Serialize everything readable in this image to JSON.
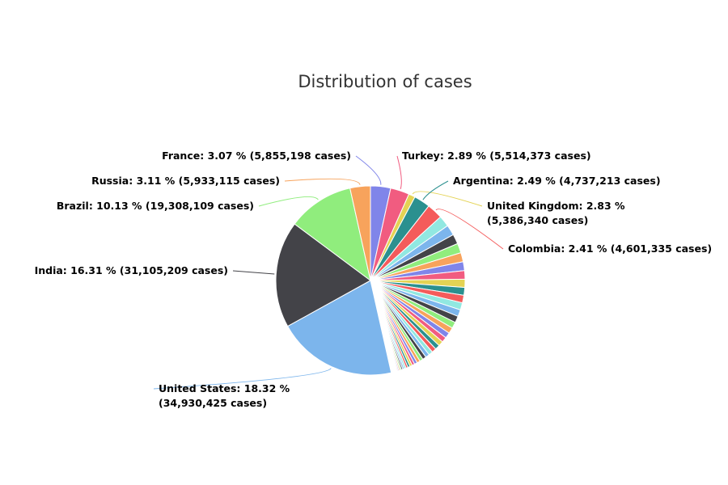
{
  "chart_data": {
    "type": "pie",
    "title": "Distribution of cases",
    "colors": [
      "#7cb5ec",
      "#434348",
      "#90ed7d",
      "#f7a35c",
      "#8085e9",
      "#f15c80",
      "#e4d354",
      "#2b908f",
      "#f45b5b",
      "#91e8e1"
    ],
    "labeled_slices": [
      {
        "name": "United States",
        "percent": 18.32,
        "cases": 34930425,
        "label_lines": [
          "United States: 18.32 %",
          "(34,930,425 cases)"
        ]
      },
      {
        "name": "India",
        "percent": 16.31,
        "cases": 31105209,
        "label_lines": [
          "India: 16.31 % (31,105,209 cases)"
        ]
      },
      {
        "name": "Brazil",
        "percent": 10.13,
        "cases": 19308109,
        "label_lines": [
          "Brazil: 10.13 % (19,308,109 cases)"
        ]
      },
      {
        "name": "Russia",
        "percent": 3.11,
        "cases": 5933115,
        "label_lines": [
          "Russia: 3.11 % (5,933,115 cases)"
        ]
      },
      {
        "name": "France",
        "percent": 3.07,
        "cases": 5855198,
        "label_lines": [
          "France: 3.07 % (5,855,198 cases)"
        ]
      },
      {
        "name": "Turkey",
        "percent": 2.89,
        "cases": 5514373,
        "label_lines": [
          "Turkey: 2.89 % (5,514,373 cases)"
        ]
      },
      {
        "name": "United Kingdom",
        "percent": 2.83,
        "cases": 5386340,
        "label_lines": [
          "United Kingdom: 2.83 %",
          "(5,386,340 cases)"
        ]
      },
      {
        "name": "Argentina",
        "percent": 2.49,
        "cases": 4737213,
        "label_lines": [
          "Argentina: 2.49 % (4,737,213 cases)"
        ]
      },
      {
        "name": "Colombia",
        "percent": 2.41,
        "cases": 4601335,
        "label_lines": [
          "Colombia: 2.41 % (4,601,335 cases)"
        ]
      }
    ],
    "unlabeled_slices_percent": [
      1.7,
      1.6,
      1.5,
      1.45,
      1.4,
      1.35,
      1.3,
      1.25,
      1.2,
      1.15,
      1.1,
      1.05,
      1.0,
      0.95,
      0.9,
      0.85,
      0.8,
      0.76,
      0.72,
      0.68,
      0.64,
      0.6,
      0.56,
      0.52,
      0.48,
      0.44,
      0.4,
      0.37,
      0.34,
      0.31,
      0.28,
      0.25,
      0.22,
      0.2,
      0.18,
      0.16,
      0.14,
      0.12,
      0.1,
      0.09,
      0.08,
      0.07,
      0.06,
      0.05,
      0.05,
      0.04,
      0.04,
      0.03,
      0.03,
      0.02,
      0.02,
      0.02,
      0.015,
      0.015,
      0.01,
      0.01,
      0.01,
      0.01,
      0.01,
      0.01
    ]
  }
}
